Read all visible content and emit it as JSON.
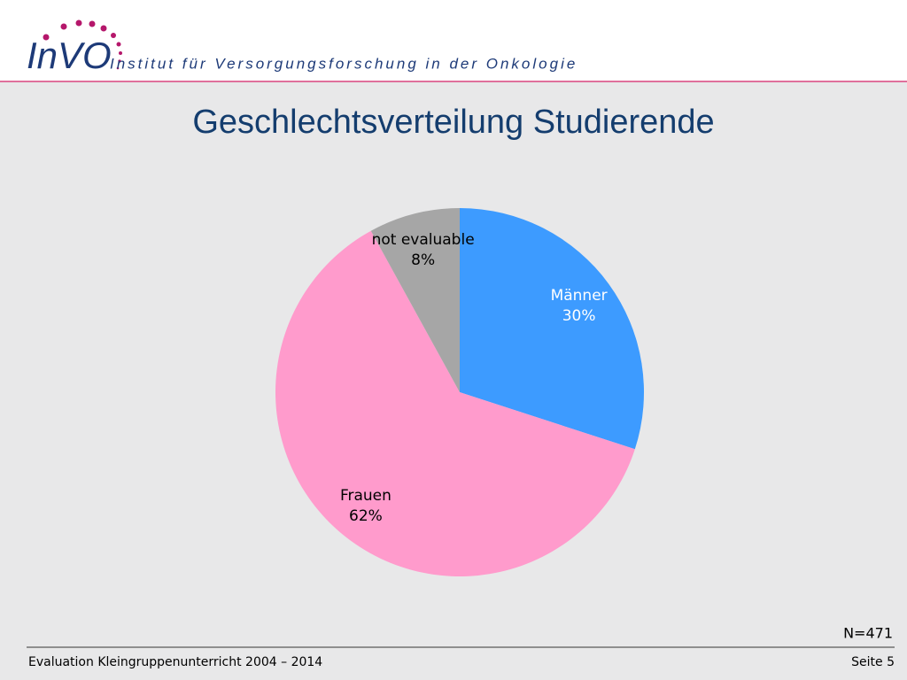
{
  "header": {
    "logo": "InVO",
    "institute": "Institut für Versorgungsforschung in der Onkologie"
  },
  "chart_data": {
    "type": "pie",
    "title": "Geschlechtsverteilung Studierende",
    "categories": [
      "Männer",
      "Frauen",
      "not evaluable"
    ],
    "values": [
      30,
      62,
      8
    ],
    "value_labels": [
      "30%",
      "62%",
      "8%"
    ],
    "colors": [
      "#3d9bff",
      "#ff9bcc",
      "#a6a6a6"
    ],
    "label_colors": [
      "#ffffff",
      "#000000",
      "#000000"
    ]
  },
  "note": "N=471",
  "footer": {
    "left": "Evaluation Kleingruppenunterricht 2004 – 2014",
    "right": "Seite 5"
  }
}
